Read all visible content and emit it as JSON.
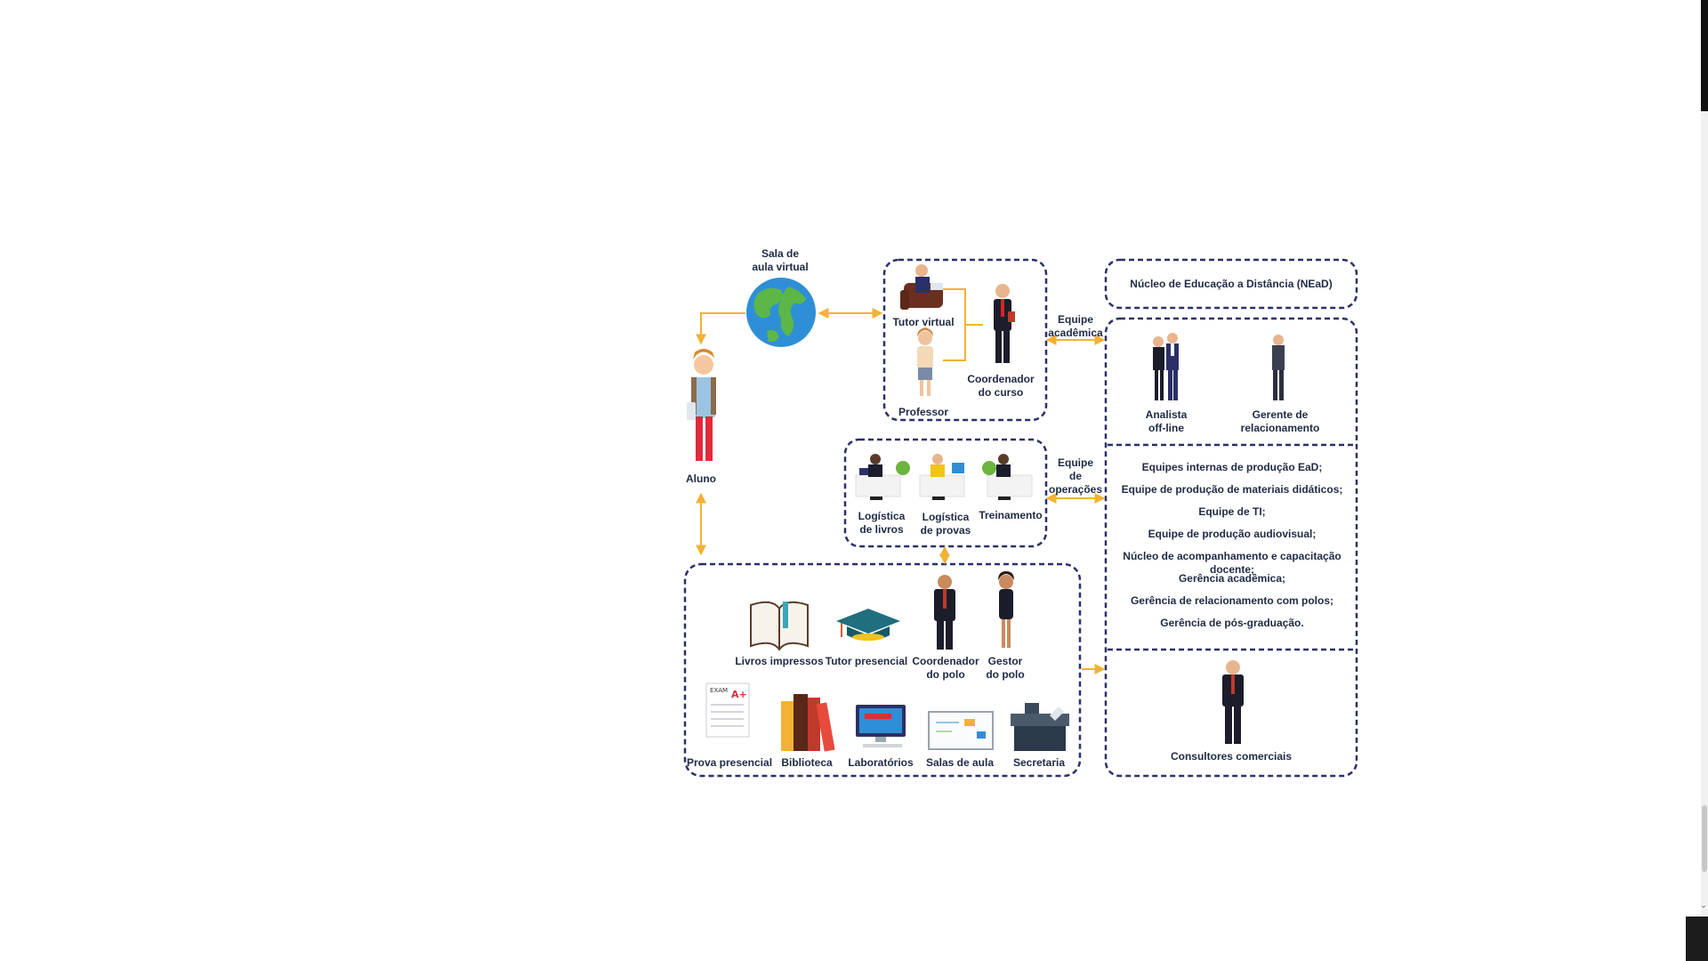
{
  "diagram": {
    "virtual_classroom": "Sala de\naula virtual",
    "student": "Aluno",
    "tutor_virtual": "Tutor virtual",
    "professor": "Professor",
    "course_coordinator": "Coordenador\ndo curso",
    "academic_team": "Equipe\nacadêmica",
    "operations_team": "Equipe\nde\noperações",
    "book_logistics": "Logística\nde livros",
    "exam_logistics": "Logística\nde provas",
    "training": "Treinamento",
    "nead_title": "Núcleo de Educação a Distância (NEaD)",
    "offline_analyst": "Analista\noff-line",
    "relationship_manager": "Gerente de\nrelacionamento",
    "nead_teams": [
      "Equipes internas de produção EaD;",
      "Equipe de produção de materiais didáticos;",
      "Equipe de TI;",
      "Equipe de produção audiovisual;",
      "Núcleo de acompanhamento e capacitação docente;",
      "Gerência acadêmica;",
      "Gerência de relacionamento com polos;",
      "Gerência de pós-graduação."
    ],
    "sales_consultants": "Consultores comerciais",
    "printed_books": "Livros impressos",
    "onsite_tutor": "Tutor presencial",
    "pole_coordinator": "Coordenador\ndo polo",
    "pole_manager": "Gestor\ndo polo",
    "onsite_exam": "Prova presencial",
    "library": "Biblioteca",
    "laboratories": "Laboratórios",
    "classrooms": "Salas de aula",
    "secretariat": "Secretaria",
    "exam_sheet_title": "EXAM",
    "exam_grade": "A+"
  },
  "colors": {
    "dashed_border": "#2b3068",
    "arrow": "#f2b233",
    "connector": "#f2b233",
    "text": "#1f2a44"
  },
  "icons": [
    "globe-icon",
    "student-icon",
    "tutor-icon",
    "teacher-icon",
    "coordinator-icon",
    "workstation-icon",
    "analyst-icon",
    "manager-icon",
    "consultant-icon",
    "book-icon",
    "graduation-cap-icon",
    "exam-sheet-icon",
    "library-books-icon",
    "computer-icon",
    "whiteboard-icon",
    "desk-icon"
  ]
}
